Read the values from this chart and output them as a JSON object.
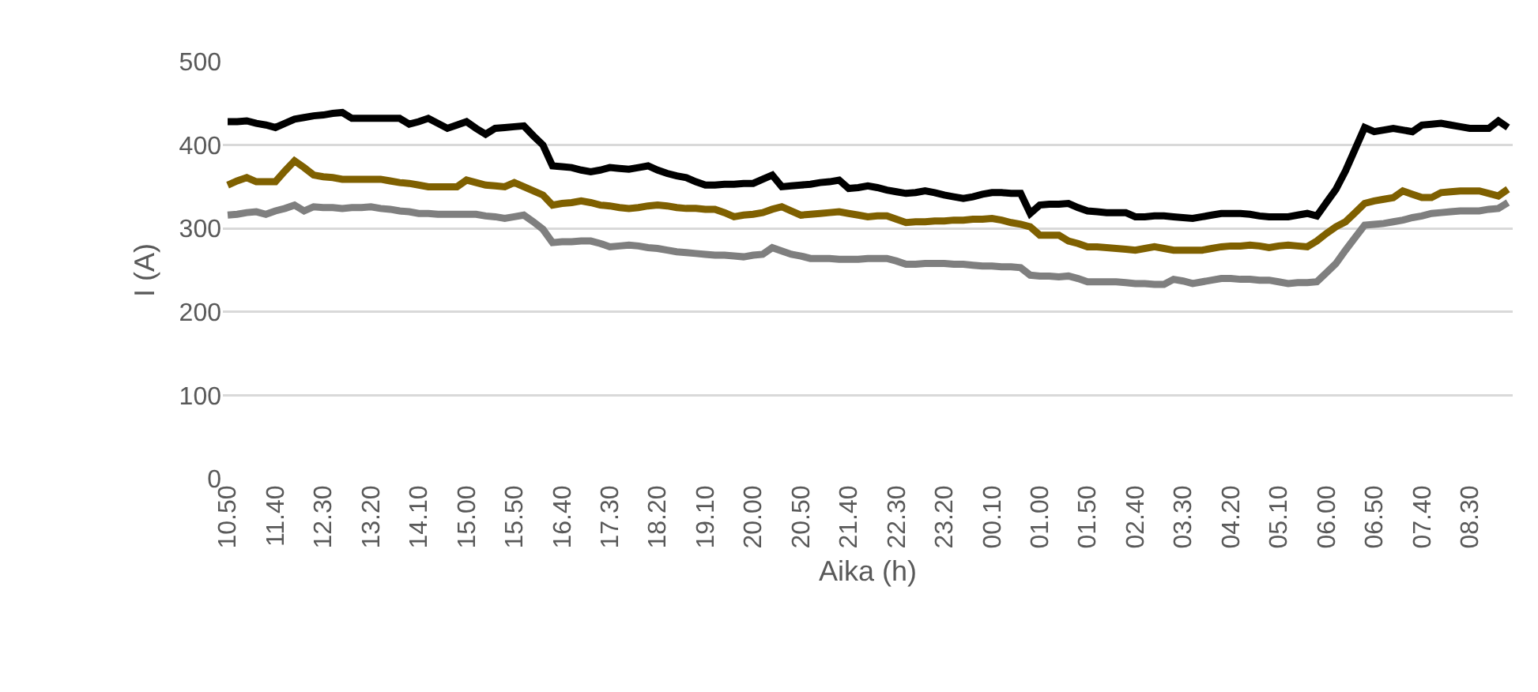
{
  "chart_data": {
    "type": "line",
    "xlabel": "Aika (h)",
    "ylabel": "I (A)",
    "categories": [
      "10.50",
      null,
      null,
      null,
      null,
      "11.40",
      null,
      null,
      null,
      null,
      "12.30",
      null,
      null,
      null,
      null,
      "13.20",
      null,
      null,
      null,
      null,
      "14.10",
      null,
      null,
      null,
      null,
      "15.00",
      null,
      null,
      null,
      null,
      "15.50",
      null,
      null,
      null,
      null,
      "16.40",
      null,
      null,
      null,
      null,
      "17.30",
      null,
      null,
      null,
      null,
      "18.20",
      null,
      null,
      null,
      null,
      "19.10",
      null,
      null,
      null,
      null,
      "20.00",
      null,
      null,
      null,
      null,
      "20.50",
      null,
      null,
      null,
      null,
      "21.40",
      null,
      null,
      null,
      null,
      "22.30",
      null,
      null,
      null,
      null,
      "23.20",
      null,
      null,
      null,
      null,
      "00.10",
      null,
      null,
      null,
      null,
      "01.00",
      null,
      null,
      null,
      null,
      "01.50",
      null,
      null,
      null,
      null,
      "02.40",
      null,
      null,
      null,
      null,
      "03.30",
      null,
      null,
      null,
      null,
      "04.20",
      null,
      null,
      null,
      null,
      "05.10",
      null,
      null,
      null,
      null,
      "06.00",
      null,
      null,
      null,
      null,
      "06.50",
      null,
      null,
      null,
      null,
      "07.40",
      null,
      null,
      null,
      null,
      "08.30",
      null,
      null,
      null,
      null
    ],
    "ylim": [
      0,
      500
    ],
    "yticks": [
      0,
      100,
      200,
      300,
      400,
      500
    ],
    "grid": "y",
    "marker": "none",
    "line_style": "solid",
    "series": [
      {
        "color": "#000000",
        "values": [
          428,
          428,
          429,
          426,
          424,
          421,
          426,
          431,
          433,
          435,
          436,
          438,
          439,
          432,
          432,
          432,
          432,
          432,
          432,
          425,
          428,
          432,
          426,
          420,
          424,
          428,
          420,
          413,
          420,
          421,
          422,
          423,
          411,
          400,
          375,
          374,
          373,
          370,
          368,
          370,
          373,
          372,
          371,
          373,
          375,
          370,
          366,
          363,
          361,
          356,
          352,
          352,
          353,
          353,
          354,
          354,
          359,
          364,
          350,
          351,
          352,
          353,
          355,
          356,
          358,
          348,
          349,
          351,
          349,
          346,
          344,
          342,
          343,
          345,
          343,
          340,
          338,
          336,
          338,
          341,
          343,
          343,
          342,
          342,
          318,
          328,
          329,
          329,
          330,
          325,
          321,
          320,
          319,
          319,
          319,
          314,
          314,
          315,
          315,
          314,
          313,
          312,
          314,
          316,
          318,
          318,
          318,
          317,
          315,
          314,
          314,
          314,
          316,
          318,
          315,
          331,
          347,
          369,
          395,
          421,
          416,
          418,
          420,
          418,
          416,
          424,
          425,
          426,
          424,
          422,
          420,
          420,
          420,
          429,
          421
        ]
      },
      {
        "color": "#7f6000",
        "values": [
          352,
          357,
          361,
          356,
          356,
          356,
          369,
          381,
          373,
          364,
          362,
          361,
          359,
          359,
          359,
          359,
          359,
          357,
          355,
          354,
          352,
          350,
          350,
          350,
          350,
          358,
          355,
          352,
          351,
          350,
          355,
          350,
          345,
          340,
          328,
          330,
          331,
          333,
          331,
          328,
          327,
          325,
          324,
          325,
          327,
          328,
          327,
          325,
          324,
          324,
          323,
          323,
          319,
          314,
          316,
          317,
          319,
          323,
          326,
          321,
          316,
          317,
          318,
          319,
          320,
          318,
          316,
          314,
          315,
          315,
          311,
          307,
          308,
          308,
          309,
          309,
          310,
          310,
          311,
          311,
          312,
          310,
          307,
          305,
          302,
          292,
          292,
          292,
          285,
          282,
          278,
          278,
          277,
          276,
          275,
          274,
          276,
          278,
          276,
          274,
          274,
          274,
          274,
          276,
          278,
          279,
          279,
          280,
          279,
          277,
          279,
          280,
          279,
          278,
          285,
          294,
          302,
          308,
          319,
          330,
          333,
          335,
          337,
          345,
          341,
          337,
          337,
          343,
          344,
          345,
          345,
          345,
          342,
          339,
          347
        ]
      },
      {
        "color": "#7f7f7f",
        "values": [
          316,
          317,
          319,
          320,
          317,
          321,
          324,
          328,
          321,
          326,
          325,
          325,
          324,
          325,
          325,
          326,
          324,
          323,
          321,
          320,
          318,
          318,
          317,
          317,
          317,
          317,
          317,
          315,
          314,
          312,
          314,
          316,
          308,
          299,
          283,
          284,
          284,
          285,
          285,
          282,
          278,
          279,
          280,
          279,
          277,
          276,
          274,
          272,
          271,
          270,
          269,
          268,
          268,
          267,
          266,
          268,
          269,
          277,
          273,
          269,
          267,
          264,
          264,
          264,
          263,
          263,
          263,
          264,
          264,
          264,
          261,
          257,
          257,
          258,
          258,
          258,
          257,
          257,
          256,
          255,
          255,
          254,
          254,
          253,
          244,
          243,
          243,
          242,
          243,
          240,
          236,
          236,
          236,
          236,
          235,
          234,
          234,
          233,
          233,
          239,
          237,
          234,
          236,
          238,
          240,
          240,
          239,
          239,
          238,
          238,
          236,
          234,
          235,
          235,
          236,
          247,
          258,
          274,
          289,
          304,
          305,
          306,
          308,
          310,
          313,
          315,
          318,
          319,
          320,
          321,
          321,
          321,
          323,
          324,
          331
        ]
      }
    ]
  }
}
